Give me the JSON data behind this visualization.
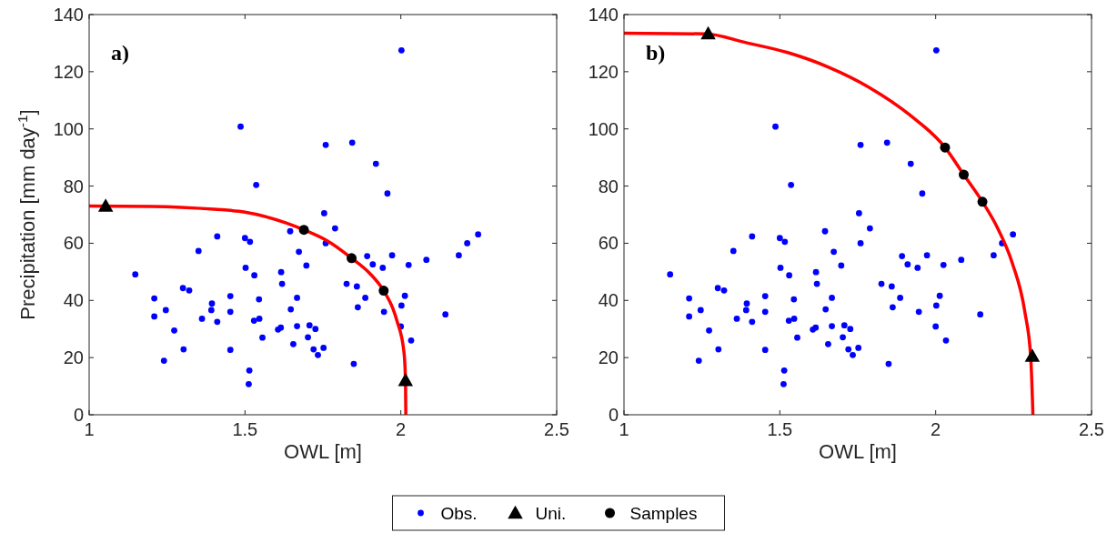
{
  "chart_data": [
    {
      "type": "scatter",
      "xlabel": "OWL [m]",
      "ylabel": "Precipitation [mm day$^{-1}$]",
      "annotations": [
        "a)"
      ],
      "xlim": [
        1,
        2.5
      ],
      "xticks": [
        1,
        1.5,
        2,
        2.5
      ],
      "ylim": [
        0,
        140
      ],
      "yticks": [
        0,
        20,
        40,
        60,
        80,
        100,
        120,
        140
      ],
      "legend": "bottom",
      "series": [
        {
          "name": "Obs.",
          "marker": "circle",
          "color": "#0000ff",
          "x": [
            1.486,
            1.759,
            1.536,
            1.754,
            1.789,
            1.411,
            1.5,
            1.516,
            1.645,
            1.759,
            1.351,
            1.673,
            1.697,
            1.148,
            1.502,
            1.53,
            1.616,
            1.619,
            1.301,
            1.321,
            1.209,
            1.453,
            1.545,
            1.667,
            1.394,
            1.246,
            1.392,
            1.453,
            1.647,
            1.209,
            1.362,
            1.411,
            1.529,
            1.546,
            1.273,
            1.606,
            1.615,
            1.667,
            1.707,
            1.726,
            1.556,
            1.702,
            1.303,
            1.453,
            1.655,
            1.72,
            1.752,
            1.734,
            1.24,
            1.514,
            1.512,
            1.844,
            1.92,
            1.957,
            2.248,
            2.213,
            2.186,
            1.892,
            1.972,
            1.91,
            1.942,
            2.025,
            2.082,
            1.826,
            1.859,
            1.886,
            2.013,
            1.862,
            1.946,
            2.002,
            2.143,
            2.0,
            2.033,
            1.849,
            2.002
          ],
          "values": [
            100.8,
            94.4,
            80.4,
            70.5,
            65.2,
            62.4,
            61.8,
            60.5,
            64.2,
            60.0,
            57.3,
            57.0,
            52.2,
            49.1,
            51.4,
            48.8,
            49.9,
            45.8,
            44.3,
            43.5,
            40.7,
            41.5,
            40.4,
            40.9,
            38.9,
            36.6,
            36.6,
            36.0,
            36.9,
            34.4,
            33.6,
            32.5,
            32.9,
            33.6,
            29.5,
            29.8,
            30.5,
            31.0,
            31.3,
            30.0,
            27.0,
            27.1,
            22.9,
            22.7,
            24.7,
            22.9,
            23.4,
            20.9,
            18.9,
            15.5,
            10.7,
            95.2,
            87.8,
            77.4,
            63.1,
            60.0,
            55.8,
            55.5,
            55.8,
            52.6,
            51.4,
            52.4,
            54.2,
            45.8,
            44.9,
            40.9,
            41.6,
            37.6,
            36.0,
            38.2,
            35.1,
            30.9,
            26.0,
            17.8,
            127.5
          ]
        },
        {
          "type": "line",
          "color": "#ff0000",
          "marker": "none",
          "line_style": "solid",
          "x": [
            1,
            1.2,
            1.4,
            1.5,
            1.632,
            1.689,
            1.765,
            1.842,
            1.9,
            1.945,
            1.975,
            1.988,
            2.01,
            2.015,
            2.016
          ],
          "values": [
            73,
            72.9,
            71.9,
            70.9,
            67.1,
            64.7,
            60.8,
            54.8,
            49.5,
            43.4,
            37,
            32.7,
            22,
            12,
            0
          ]
        },
        {
          "name": "Uni.",
          "marker": "triangle",
          "color": "#000000",
          "x": [
            1.053,
            2.015
          ],
          "values": [
            73.0,
            12.0
          ]
        },
        {
          "name": "Samples",
          "marker": "circle",
          "color": "#000000",
          "x": [
            1.689,
            1.842,
            1.945
          ],
          "values": [
            64.7,
            54.8,
            43.4
          ]
        }
      ]
    },
    {
      "type": "scatter",
      "xlabel": "OWL [m]",
      "annotations": [
        "b)"
      ],
      "xlim": [
        1,
        2.5
      ],
      "xticks": [
        1,
        1.5,
        2,
        2.5
      ],
      "ylim": [
        0,
        140
      ],
      "yticks": [
        0,
        20,
        40,
        60,
        80,
        100,
        120,
        140
      ],
      "series": [
        {
          "marker": "circle",
          "color": "#0000ff",
          "x": [
            1.486,
            1.759,
            1.536,
            1.754,
            1.789,
            1.411,
            1.5,
            1.516,
            1.645,
            1.759,
            1.351,
            1.673,
            1.697,
            1.148,
            1.502,
            1.53,
            1.616,
            1.619,
            1.301,
            1.321,
            1.209,
            1.453,
            1.545,
            1.667,
            1.394,
            1.246,
            1.392,
            1.453,
            1.647,
            1.209,
            1.362,
            1.411,
            1.529,
            1.546,
            1.273,
            1.606,
            1.615,
            1.667,
            1.707,
            1.726,
            1.556,
            1.702,
            1.303,
            1.453,
            1.655,
            1.72,
            1.752,
            1.734,
            1.24,
            1.514,
            1.512,
            1.844,
            1.92,
            1.957,
            2.248,
            2.213,
            2.186,
            1.892,
            1.972,
            1.91,
            1.942,
            2.025,
            2.082,
            1.826,
            1.859,
            1.886,
            2.013,
            1.862,
            1.946,
            2.002,
            2.143,
            2.0,
            2.033,
            1.849,
            2.002
          ],
          "values": [
            100.8,
            94.4,
            80.4,
            70.5,
            65.2,
            62.4,
            61.8,
            60.5,
            64.2,
            60.0,
            57.3,
            57.0,
            52.2,
            49.1,
            51.4,
            48.8,
            49.9,
            45.8,
            44.3,
            43.5,
            40.7,
            41.5,
            40.4,
            40.9,
            38.9,
            36.6,
            36.6,
            36.0,
            36.9,
            34.4,
            33.6,
            32.5,
            32.9,
            33.6,
            29.5,
            29.8,
            30.5,
            31.0,
            31.3,
            30.0,
            27.0,
            27.1,
            22.9,
            22.7,
            24.7,
            22.9,
            23.4,
            20.9,
            18.9,
            15.5,
            10.7,
            95.2,
            87.8,
            77.4,
            63.1,
            60.0,
            55.8,
            55.5,
            55.8,
            52.6,
            51.4,
            52.4,
            54.2,
            45.8,
            44.9,
            40.9,
            41.6,
            37.6,
            36.0,
            38.2,
            35.1,
            30.9,
            26.0,
            17.8,
            127.5
          ]
        },
        {
          "type": "line",
          "color": "#ff0000",
          "marker": "none",
          "line_style": "solid",
          "x": [
            1,
            1.262,
            1.394,
            1.525,
            1.656,
            1.787,
            1.918,
            2.03,
            2.09,
            2.15,
            2.2,
            2.246,
            2.286,
            2.305,
            2.312
          ],
          "values": [
            133.5,
            133.2,
            130.1,
            126.7,
            121.6,
            114.5,
            104.8,
            93.5,
            84,
            74.5,
            65,
            53,
            36,
            20,
            0
          ]
        },
        {
          "marker": "triangle",
          "color": "#000000",
          "x": [
            1.27,
            2.31
          ],
          "values": [
            133.3,
            20.5
          ]
        },
        {
          "marker": "circle",
          "color": "#000000",
          "x": [
            2.03,
            2.09,
            2.15
          ],
          "values": [
            93.5,
            84,
            74.5
          ]
        }
      ]
    }
  ]
}
